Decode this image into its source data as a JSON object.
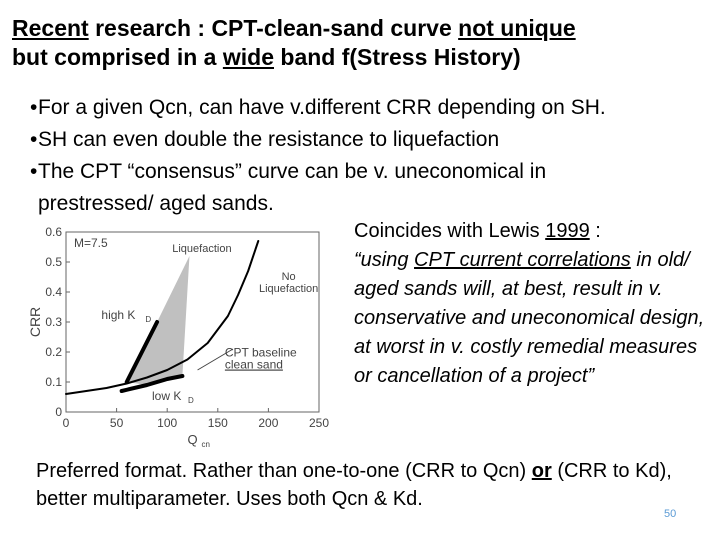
{
  "title": {
    "line1_part1": "Recent",
    "line1_part2": " research : CPT-clean-sand curve ",
    "line1_part3": "not unique",
    "line2_part1": "but comprised in a ",
    "line2_part2": "wide",
    "line2_part3": " band f(Stress History)"
  },
  "bullets": [
    "For a given Qcn, can have v.different CRR depending on SH.",
    "SH can even double the resistance to liquefaction",
    "The CPT “consensus” curve can be v. uneconomical in prestressed/ aged sands."
  ],
  "bullet_char": "•",
  "quote": {
    "lead": "Coincides with Lewis ",
    "year": "1999",
    "colon": " :",
    "text_open": "“using ",
    "text_underlined": "CPT current correlations",
    "text_rest": " in old/ aged sands will, at best, result in v. conservative and uneconomical design, at worst in v. costly remedial measures or cancellation of a project”"
  },
  "footer": {
    "part1": "Preferred format.  Rather than one-to-one (CRR to Qcn) ",
    "or": "or",
    "part2": " (CRR to Kd), better multiparameter. Uses both Qcn & Kd."
  },
  "page_number": "50",
  "chart_data": {
    "type": "line",
    "xlabel": "Q",
    "xlabel_sub": "cn",
    "ylabel": "CRR",
    "xlim": [
      0,
      250
    ],
    "ylim": [
      0,
      0.6
    ],
    "x_ticks": [
      "0",
      "50",
      "100",
      "150",
      "200",
      "250"
    ],
    "y_ticks": [
      "0",
      "0.1",
      "0.2",
      "0.3",
      "0.4",
      "0.5",
      "0.6"
    ],
    "annotations": {
      "m_label": "M=7.5",
      "liq_label": "Liquefaction",
      "noliq_line1": "No",
      "noliq_line2": "Liquefaction",
      "highkd": "high K",
      "highkd_sub": "D",
      "lowkd": "low K",
      "lowkd_sub": "D",
      "baseline_line1": "CPT baseline",
      "baseline_line2": "clean sand"
    },
    "series": [
      {
        "role": "baseline",
        "x": [
          0,
          20,
          40,
          60,
          80,
          100,
          120,
          140,
          160,
          170,
          180,
          190
        ],
        "y": [
          0.06,
          0.07,
          0.08,
          0.095,
          0.115,
          0.14,
          0.175,
          0.23,
          0.32,
          0.39,
          0.47,
          0.57
        ]
      },
      {
        "role": "high-kd",
        "x": [
          60,
          75,
          90
        ],
        "y": [
          0.1,
          0.2,
          0.3
        ]
      },
      {
        "role": "low-kd",
        "x": [
          55,
          80,
          100,
          115
        ],
        "y": [
          0.07,
          0.09,
          0.11,
          0.12
        ]
      }
    ],
    "band": {
      "x": [
        60,
        90,
        122,
        115,
        100,
        80,
        60
      ],
      "y": [
        0.1,
        0.3,
        0.52,
        0.12,
        0.11,
        0.09,
        0.1
      ]
    },
    "colors": {
      "band": "#c0c0c0",
      "axis": "#666666",
      "text": "#444444"
    }
  }
}
